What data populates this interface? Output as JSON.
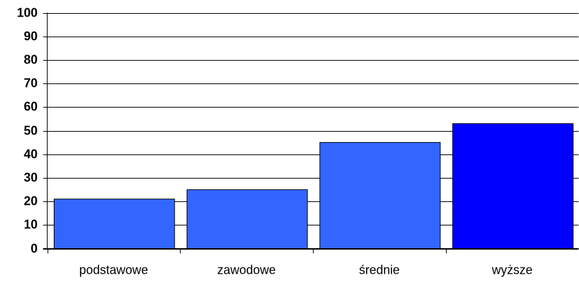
{
  "chart_data": {
    "type": "bar",
    "categories": [
      "podstawowe",
      "zawodowe",
      "średnie",
      "wyższe"
    ],
    "values": [
      21,
      25,
      45,
      53
    ],
    "colors": [
      "#3366ff",
      "#3366ff",
      "#3366ff",
      "#0000ff"
    ],
    "ylim": [
      0,
      100
    ],
    "yticks": [
      0,
      10,
      20,
      30,
      40,
      50,
      60,
      70,
      80,
      90,
      100
    ],
    "grid": true
  }
}
